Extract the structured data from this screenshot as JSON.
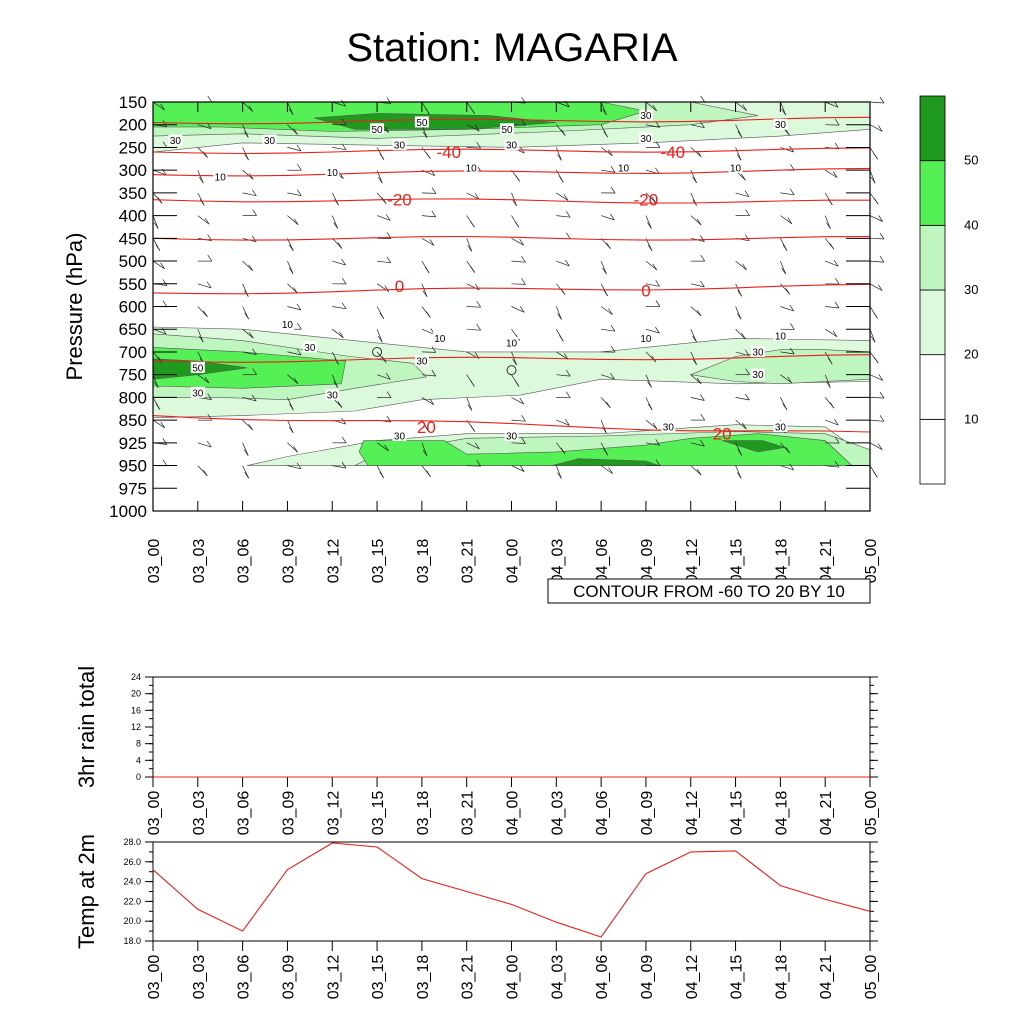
{
  "title": "Station: MAGARIA",
  "colors": {
    "temp_contour": "#e8201c",
    "wind_fill_levels": [
      "#ffffff",
      "#ffffff",
      "#dcf9dc",
      "#bff5bf",
      "#55f055",
      "#1f9a1f"
    ],
    "line_black": "#000000"
  },
  "chart_data": [
    {
      "type": "heatmap",
      "name": "cross-section",
      "ylabel": "Pressure (hPa)",
      "pressure_levels": [
        "150",
        "200",
        "250",
        "300",
        "350",
        "400",
        "450",
        "500",
        "550",
        "600",
        "650",
        "700",
        "750",
        "800",
        "850",
        "925",
        "950",
        "975",
        "1000"
      ],
      "time_labels": [
        "03_00",
        "03_03",
        "03_06",
        "03_09",
        "03_12",
        "03_15",
        "03_18",
        "03_21",
        "04_00",
        "04_03",
        "04_06",
        "04_09",
        "04_12",
        "04_15",
        "04_18",
        "04_21",
        "05_00"
      ],
      "wind_speed_colorbar": {
        "levels": [
          "10",
          "20",
          "30",
          "40",
          "50"
        ]
      },
      "contour_note": "CONTOUR FROM -60 TO 20 BY 10",
      "temperature_contour_labels": [
        {
          "text": "-40",
          "time_index": 6.6,
          "level_index": 2.2
        },
        {
          "text": "-40",
          "time_index": 11.6,
          "level_index": 2.2
        },
        {
          "text": "-20",
          "time_index": 5.5,
          "level_index": 4.3
        },
        {
          "text": "-20",
          "time_index": 11.0,
          "level_index": 4.3
        },
        {
          "text": "0",
          "time_index": 5.5,
          "level_index": 8.1
        },
        {
          "text": "0",
          "time_index": 11.0,
          "level_index": 8.3
        },
        {
          "text": "20",
          "time_index": 6.1,
          "level_index": 14.3
        },
        {
          "text": "20",
          "time_index": 12.7,
          "level_index": 14.6
        }
      ],
      "wind_contour_labels": [
        {
          "text": "30",
          "time_index": 0.5,
          "level_index": 1.7
        },
        {
          "text": "30",
          "time_index": 2.6,
          "level_index": 1.7
        },
        {
          "text": "30",
          "time_index": 5.5,
          "level_index": 1.9
        },
        {
          "text": "30",
          "time_index": 8.0,
          "level_index": 1.9
        },
        {
          "text": "30",
          "time_index": 11.0,
          "level_index": 0.6
        },
        {
          "text": "30",
          "time_index": 11.0,
          "level_index": 1.6
        },
        {
          "text": "30",
          "time_index": 14.0,
          "level_index": 1.0
        },
        {
          "text": "50",
          "time_index": 5.0,
          "level_index": 1.2
        },
        {
          "text": "50",
          "time_index": 6.0,
          "level_index": 0.9
        },
        {
          "text": "50",
          "time_index": 7.9,
          "level_index": 1.2
        },
        {
          "text": "10",
          "time_index": 1.5,
          "level_index": 3.3
        },
        {
          "text": "10",
          "time_index": 4.0,
          "level_index": 3.1
        },
        {
          "text": "10",
          "time_index": 7.1,
          "level_index": 2.9
        },
        {
          "text": "10",
          "time_index": 10.5,
          "level_index": 2.9
        },
        {
          "text": "10",
          "time_index": 13.0,
          "level_index": 2.9
        },
        {
          "text": "10",
          "time_index": 3.0,
          "level_index": 9.8
        },
        {
          "text": "10",
          "time_index": 6.4,
          "level_index": 10.4
        },
        {
          "text": "10",
          "time_index": 8.0,
          "level_index": 10.6
        },
        {
          "text": "10",
          "time_index": 11.0,
          "level_index": 10.4
        },
        {
          "text": "10",
          "time_index": 14.0,
          "level_index": 10.3
        },
        {
          "text": "30",
          "time_index": 3.5,
          "level_index": 10.8
        },
        {
          "text": "50",
          "time_index": 1.0,
          "level_index": 11.7
        },
        {
          "text": "30",
          "time_index": 1.0,
          "level_index": 12.8
        },
        {
          "text": "30",
          "time_index": 4.0,
          "level_index": 12.9
        },
        {
          "text": "30",
          "time_index": 6.0,
          "level_index": 11.4
        },
        {
          "text": "30",
          "time_index": 13.5,
          "level_index": 11.0
        },
        {
          "text": "30",
          "time_index": 13.5,
          "level_index": 12.0
        },
        {
          "text": "30",
          "time_index": 5.5,
          "level_index": 14.7
        },
        {
          "text": "30",
          "time_index": 8.0,
          "level_index": 14.7
        },
        {
          "text": "30",
          "time_index": 11.5,
          "level_index": 14.3
        },
        {
          "text": "30",
          "time_index": 14.0,
          "level_index": 14.3
        }
      ]
    },
    {
      "type": "line",
      "name": "rain",
      "ylabel": "3hr rain total",
      "ylim": [
        0,
        24
      ],
      "yticks": [
        0,
        4,
        8,
        12,
        16,
        20,
        24
      ],
      "x": [
        "03_00",
        "03_03",
        "03_06",
        "03_09",
        "03_12",
        "03_15",
        "03_18",
        "03_21",
        "04_00",
        "04_03",
        "04_06",
        "04_09",
        "04_12",
        "04_15",
        "04_18",
        "04_21",
        "05_00"
      ],
      "values": [
        0,
        0,
        0,
        0,
        0,
        0,
        0,
        0,
        0,
        0,
        0,
        0,
        0,
        0,
        0,
        0,
        0
      ]
    },
    {
      "type": "line",
      "name": "temp2m",
      "ylabel": "Temp at 2m",
      "ylim": [
        18,
        28
      ],
      "yticks": [
        "18.0",
        "20.0",
        "22.0",
        "24.0",
        "26.0",
        "28.0"
      ],
      "x": [
        "03_00",
        "03_03",
        "03_06",
        "03_09",
        "03_12",
        "03_15",
        "03_18",
        "03_21",
        "04_00",
        "04_03",
        "04_06",
        "04_09",
        "04_12",
        "04_15",
        "04_18",
        "04_21",
        "05_00"
      ],
      "values": [
        25.2,
        21.2,
        19.0,
        25.2,
        27.9,
        27.5,
        24.3,
        23.0,
        21.7,
        19.9,
        18.4,
        24.8,
        27.0,
        27.1,
        23.6,
        22.2,
        21.0
      ]
    }
  ]
}
